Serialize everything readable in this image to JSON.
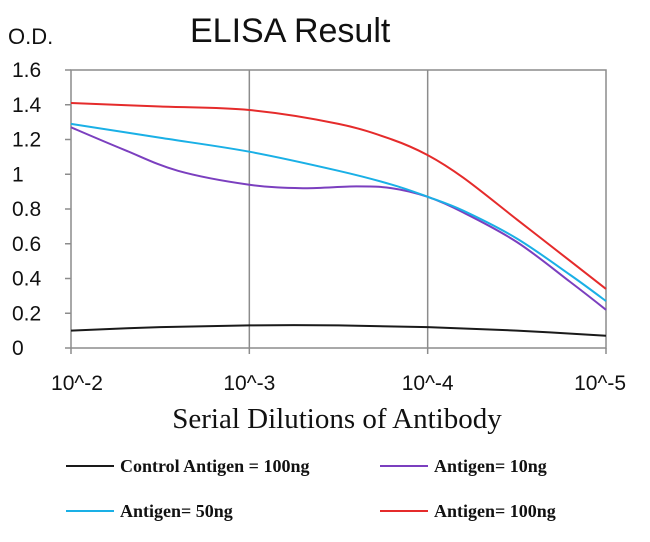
{
  "chart_data": {
    "type": "line",
    "title": "ELISA Result",
    "ylabel": "O.D.",
    "xlabel": "Serial Dilutions of Antibody",
    "categories": [
      "10^-2",
      "10^-3",
      "10^-4",
      "10^-5"
    ],
    "x_positions": [
      0,
      1,
      2,
      3
    ],
    "ylim": [
      0,
      1.6
    ],
    "yticks": [
      "0",
      "0.2",
      "0.4",
      "0.6",
      "0.8",
      "1",
      "1.2",
      "1.4",
      "1.6"
    ],
    "ytick_values": [
      0,
      0.2,
      0.4,
      0.6,
      0.8,
      1.0,
      1.2,
      1.4,
      1.6
    ],
    "grid": "vertical",
    "legend_position": "bottom",
    "series": [
      {
        "name": "Control Antigen = 100ng",
        "color": "#1a1a1a",
        "points": [
          [
            0,
            0.1
          ],
          [
            0.5,
            0.12
          ],
          [
            1,
            0.13
          ],
          [
            1.5,
            0.13
          ],
          [
            2,
            0.12
          ],
          [
            2.5,
            0.1
          ],
          [
            3,
            0.07
          ]
        ]
      },
      {
        "name": "Antigen= 10ng",
        "color": "#7b3fbf",
        "points": [
          [
            0,
            1.27
          ],
          [
            0.3,
            1.14
          ],
          [
            0.6,
            1.02
          ],
          [
            1,
            0.94
          ],
          [
            1.3,
            0.92
          ],
          [
            1.6,
            0.93
          ],
          [
            1.8,
            0.92
          ],
          [
            2,
            0.87
          ],
          [
            2.2,
            0.78
          ],
          [
            2.5,
            0.61
          ],
          [
            2.8,
            0.38
          ],
          [
            3,
            0.22
          ]
        ]
      },
      {
        "name": "Antigen= 50ng",
        "color": "#1ab0e6",
        "points": [
          [
            0,
            1.29
          ],
          [
            0.5,
            1.21
          ],
          [
            1,
            1.13
          ],
          [
            1.5,
            1.02
          ],
          [
            1.8,
            0.94
          ],
          [
            2,
            0.87
          ],
          [
            2.2,
            0.79
          ],
          [
            2.5,
            0.63
          ],
          [
            2.8,
            0.42
          ],
          [
            3,
            0.27
          ]
        ]
      },
      {
        "name": "Antigen= 100ng",
        "color": "#e52b2b",
        "points": [
          [
            0,
            1.41
          ],
          [
            0.5,
            1.39
          ],
          [
            1,
            1.37
          ],
          [
            1.5,
            1.29
          ],
          [
            1.8,
            1.2
          ],
          [
            2,
            1.11
          ],
          [
            2.2,
            0.98
          ],
          [
            2.5,
            0.74
          ],
          [
            2.8,
            0.5
          ],
          [
            3,
            0.34
          ]
        ]
      }
    ]
  }
}
